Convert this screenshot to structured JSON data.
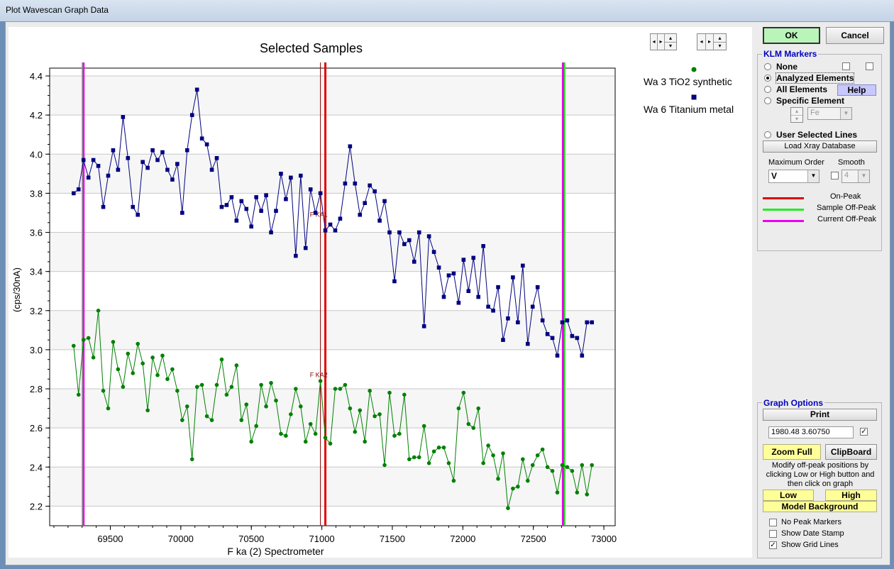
{
  "window": {
    "title": "Plot Wavescan Graph Data"
  },
  "buttons": {
    "ok": "OK",
    "cancel": "Cancel",
    "help": "Help",
    "load_xray": "Load Xray Database",
    "print": "Print",
    "zoom_full": "Zoom Full",
    "clipboard": "ClipBoard",
    "low": "Low",
    "high": "High",
    "model_background": "Model  Background"
  },
  "klm": {
    "title": "KLM Markers",
    "options": [
      {
        "label": "None",
        "checked": false
      },
      {
        "label": "Analyzed Elements",
        "checked": true
      },
      {
        "label": "All Elements",
        "checked": false
      },
      {
        "label": "Specific Element",
        "checked": false
      }
    ],
    "element_value": "Fe",
    "user_lines_label": "User Selected Lines",
    "max_order_label": "Maximum Order",
    "max_order_value": "V",
    "smooth_label": "Smooth",
    "smooth_value": "4",
    "legend": [
      {
        "label": "On-Peak",
        "color": "#e00000"
      },
      {
        "label": "Sample Off-Peak",
        "color": "#22ee22"
      },
      {
        "label": "Current Off-Peak",
        "color": "#ee00ee"
      }
    ]
  },
  "graph_options": {
    "title": "Graph Options",
    "coords": "1980.48  3.60750",
    "modify_text": "Modify off-peak positions by clicking Low or High button and then click on graph",
    "checkboxes": [
      {
        "label": "No Peak Markers",
        "checked": false
      },
      {
        "label": "Show Date Stamp",
        "checked": false
      },
      {
        "label": "Show Grid Lines",
        "checked": true
      }
    ]
  },
  "chart_data": {
    "type": "line",
    "title": "Selected Samples",
    "xlabel": "F   ka (2) Spectrometer",
    "ylabel": "(cps/30nA)",
    "xlim": [
      69070,
      73080
    ],
    "ylim": [
      2.1,
      4.44
    ],
    "xticks": [
      69500,
      70000,
      70500,
      71000,
      71500,
      72000,
      72500,
      73000
    ],
    "yticks": [
      2.2,
      2.4,
      2.6,
      2.8,
      3.0,
      3.2,
      3.4,
      3.6,
      3.8,
      4.0,
      4.2,
      4.4
    ],
    "grid": true,
    "legend_position": "top-right",
    "markers_v": [
      {
        "x": 70990,
        "label": "",
        "color": "#800000",
        "width": 1
      },
      {
        "x": 71025,
        "label": "",
        "color": "#e00000",
        "width": 3
      },
      {
        "x": 69310,
        "label": "",
        "color": "#ee00ee",
        "width": 3
      },
      {
        "x": 69300,
        "label": "",
        "color": "#22ee22",
        "width": 1
      },
      {
        "x": 72720,
        "label": "",
        "color": "#22ee22",
        "width": 3
      },
      {
        "x": 72710,
        "label": "",
        "color": "#ee00ee",
        "width": 3
      }
    ],
    "annotations": [
      {
        "text": "F KA1",
        "x": 70915,
        "y": 3.68
      },
      {
        "text": "F KA2",
        "x": 70915,
        "y": 2.86
      }
    ],
    "series": [
      {
        "name": "Wa    3   TiO2 synthetic",
        "color": "#008000",
        "marker": "circle",
        "x": [
          69240,
          69275,
          69310,
          69345,
          69380,
          69415,
          69450,
          69485,
          69520,
          69555,
          69590,
          69625,
          69660,
          69695,
          69730,
          69765,
          69800,
          69835,
          69870,
          69905,
          69940,
          69975,
          70010,
          70045,
          70080,
          70115,
          70150,
          70185,
          70220,
          70255,
          70290,
          70325,
          70360,
          70395,
          70430,
          70465,
          70500,
          70535,
          70570,
          70605,
          70640,
          70675,
          70710,
          70745,
          70780,
          70815,
          70850,
          70885,
          70920,
          70955,
          70990,
          71025,
          71060,
          71095,
          71130,
          71165,
          71200,
          71235,
          71270,
          71305,
          71340,
          71375,
          71410,
          71445,
          71480,
          71515,
          71550,
          71585,
          71620,
          71655,
          71690,
          71725,
          71760,
          71795,
          71830,
          71865,
          71900,
          71935,
          71970,
          72005,
          72040,
          72075,
          72110,
          72145,
          72180,
          72215,
          72250,
          72285,
          72320,
          72355,
          72390,
          72425,
          72460,
          72495,
          72530,
          72565,
          72600,
          72635,
          72670,
          72705,
          72740,
          72775,
          72810,
          72845,
          72880,
          72915
        ],
        "y": [
          3.02,
          2.77,
          3.05,
          3.06,
          2.96,
          3.2,
          2.79,
          2.7,
          3.04,
          2.9,
          2.81,
          2.98,
          2.88,
          3.03,
          2.93,
          2.69,
          2.96,
          2.87,
          2.97,
          2.85,
          2.9,
          2.79,
          2.64,
          2.71,
          2.44,
          2.81,
          2.82,
          2.66,
          2.64,
          2.82,
          2.95,
          2.77,
          2.81,
          2.92,
          2.64,
          2.72,
          2.53,
          2.61,
          2.82,
          2.71,
          2.83,
          2.74,
          2.57,
          2.56,
          2.67,
          2.8,
          2.71,
          2.53,
          2.62,
          2.57,
          2.84,
          2.55,
          2.52,
          2.8,
          2.8,
          2.82,
          2.7,
          2.58,
          2.69,
          2.53,
          2.79,
          2.66,
          2.67,
          2.41,
          2.78,
          2.56,
          2.57,
          2.77,
          2.44,
          2.45,
          2.45,
          2.61,
          2.42,
          2.48,
          2.5,
          2.5,
          2.42,
          2.33,
          2.7,
          2.78,
          2.62,
          2.6,
          2.7,
          2.42,
          2.51,
          2.46,
          2.34,
          2.47,
          2.19,
          2.29,
          2.3,
          2.44,
          2.33,
          2.41,
          2.46,
          2.49,
          2.4,
          2.38,
          2.27,
          2.41,
          2.4,
          2.38,
          2.27,
          2.41,
          2.26,
          2.41
        ]
      },
      {
        "name": "Wa    6   Titanium metal",
        "color": "#000080",
        "marker": "square",
        "x": [
          69240,
          69275,
          69310,
          69345,
          69380,
          69415,
          69450,
          69485,
          69520,
          69555,
          69590,
          69625,
          69660,
          69695,
          69730,
          69765,
          69800,
          69835,
          69870,
          69905,
          69940,
          69975,
          70010,
          70045,
          70080,
          70115,
          70150,
          70185,
          70220,
          70255,
          70290,
          70325,
          70360,
          70395,
          70430,
          70465,
          70500,
          70535,
          70570,
          70605,
          70640,
          70675,
          70710,
          70745,
          70780,
          70815,
          70850,
          70885,
          70920,
          70955,
          70990,
          71025,
          71060,
          71095,
          71130,
          71165,
          71200,
          71235,
          71270,
          71305,
          71340,
          71375,
          71410,
          71445,
          71480,
          71515,
          71550,
          71585,
          71620,
          71655,
          71690,
          71725,
          71760,
          71795,
          71830,
          71865,
          71900,
          71935,
          71970,
          72005,
          72040,
          72075,
          72110,
          72145,
          72180,
          72215,
          72250,
          72285,
          72320,
          72355,
          72390,
          72425,
          72460,
          72495,
          72530,
          72565,
          72600,
          72635,
          72670,
          72705,
          72740,
          72775,
          72810,
          72845,
          72880,
          72915
        ],
        "y": [
          3.8,
          3.82,
          3.97,
          3.88,
          3.97,
          3.94,
          3.73,
          3.89,
          4.02,
          3.92,
          4.19,
          3.98,
          3.73,
          3.69,
          3.96,
          3.93,
          4.02,
          3.97,
          4.01,
          3.92,
          3.87,
          3.95,
          3.7,
          4.02,
          4.2,
          4.33,
          4.08,
          4.05,
          3.92,
          3.98,
          3.73,
          3.74,
          3.78,
          3.66,
          3.76,
          3.72,
          3.63,
          3.78,
          3.71,
          3.79,
          3.6,
          3.71,
          3.9,
          3.77,
          3.88,
          3.48,
          3.89,
          3.52,
          3.82,
          3.7,
          3.8,
          3.61,
          3.64,
          3.61,
          3.67,
          3.85,
          4.04,
          3.85,
          3.69,
          3.75,
          3.84,
          3.81,
          3.66,
          3.76,
          3.6,
          3.35,
          3.6,
          3.54,
          3.56,
          3.45,
          3.6,
          3.12,
          3.58,
          3.5,
          3.42,
          3.27,
          3.38,
          3.39,
          3.24,
          3.46,
          3.3,
          3.47,
          3.27,
          3.53,
          3.22,
          3.2,
          3.32,
          3.05,
          3.16,
          3.37,
          3.14,
          3.43,
          3.03,
          3.22,
          3.32,
          3.15,
          3.08,
          3.06,
          2.97,
          3.14,
          3.15,
          3.07,
          3.06,
          2.97,
          3.14,
          3.14
        ]
      }
    ]
  }
}
